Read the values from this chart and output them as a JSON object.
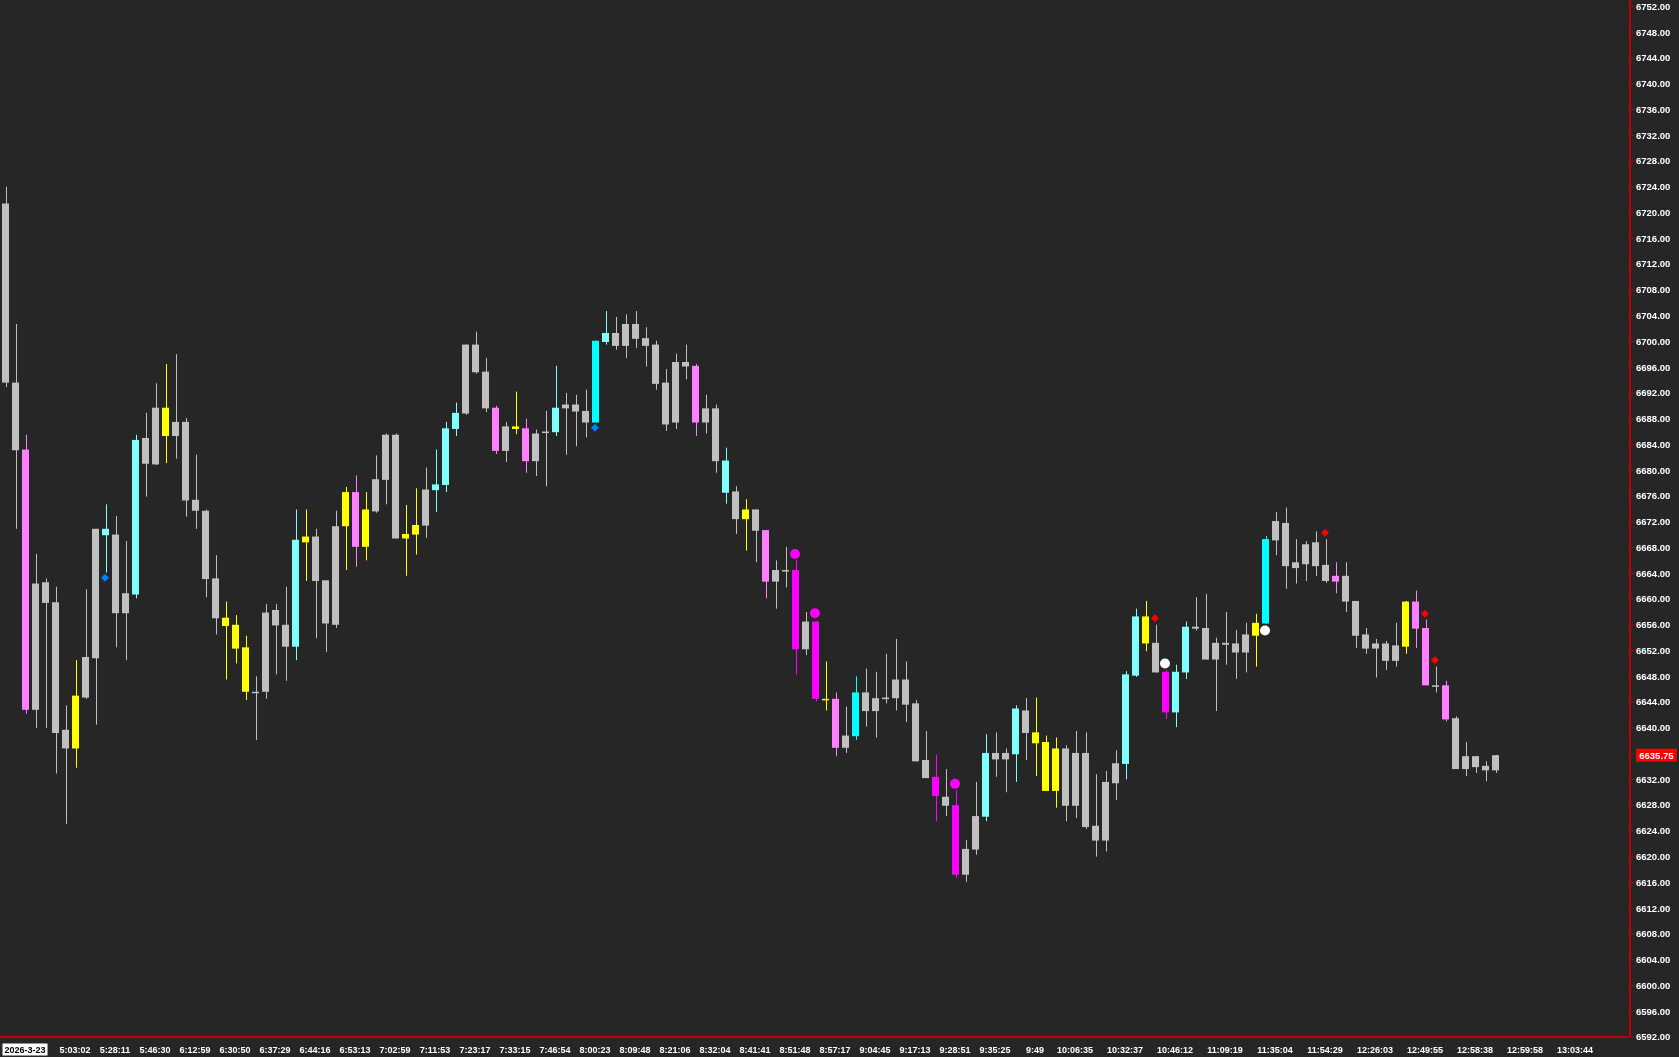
{
  "chart_data": {
    "type": "candlestick",
    "categories": [
      null,
      null,
      "2026-3-23",
      null,
      null,
      null,
      null,
      "5:03:02",
      null,
      null,
      null,
      "5:28:11",
      null,
      null,
      null,
      "5:46:30",
      null,
      null,
      null,
      "6:12:59",
      null,
      null,
      null,
      "6:30:50",
      null,
      null,
      null,
      "6:37:29",
      null,
      null,
      null,
      "6:44:16",
      null,
      null,
      null,
      "6:53:13",
      null,
      null,
      null,
      "7:02:59",
      null,
      null,
      null,
      "7:11:53",
      null,
      null,
      null,
      "7:23:17",
      null,
      null,
      null,
      "7:33:15",
      null,
      null,
      null,
      "7:46:54",
      null,
      null,
      null,
      "8:00:23",
      null,
      null,
      null,
      "8:09:48",
      null,
      null,
      null,
      "8:21:06",
      null,
      null,
      null,
      "8:32:04",
      null,
      null,
      null,
      "8:41:41",
      null,
      null,
      null,
      "8:51:48",
      null,
      null,
      null,
      "8:57:17",
      null,
      null,
      null,
      "9:04:45",
      null,
      null,
      null,
      "9:17:13",
      null,
      null,
      null,
      "9:28:51",
      null,
      null,
      null,
      "9:35:25",
      null,
      null,
      null,
      "9:49",
      null,
      null,
      null,
      "10:06:35",
      null,
      null,
      null,
      null,
      "10:32:37",
      null,
      null,
      null,
      null,
      "10:46:12",
      null,
      null,
      null,
      null,
      "11:09:19",
      null,
      null,
      null,
      null,
      "11:35:04",
      null,
      null,
      null,
      null,
      "11:54:29",
      null,
      null,
      null,
      null,
      "12:26:03",
      null,
      null,
      null,
      null,
      "12:49:55",
      null,
      null,
      null,
      null,
      "12:58:38",
      null,
      null,
      null,
      null,
      "12:59:58",
      null,
      null,
      null,
      null,
      "13:03:44",
      null,
      null,
      null,
      null,
      null
    ],
    "ohlc": [
      [
        6693.6,
        6724.0,
        6692.9,
        6721.4
      ],
      [
        6683.1,
        6702.7,
        6670.9,
        6693.6
      ],
      [
        6683.2,
        6685.5,
        6642.2,
        6642.8
      ],
      [
        6642.8,
        6667.0,
        6640.0,
        6662.4
      ],
      [
        6659.4,
        6663.2,
        6640.0,
        6662.6
      ],
      [
        6639.2,
        6661.9,
        6632.9,
        6659.5
      ],
      [
        6636.8,
        6643.5,
        6625.1,
        6639.7
      ],
      [
        6636.8,
        6650.5,
        6633.8,
        6645.0
      ],
      [
        6644.7,
        6661.5,
        6644.5,
        6651.0
      ],
      [
        6650.8,
        6670.9,
        6640.5,
        6670.9
      ],
      [
        6669.9,
        6674.7,
        6664.1,
        6670.9
      ],
      [
        6657.8,
        6672.9,
        6652.5,
        6670.0
      ],
      [
        6657.8,
        6669.0,
        6650.5,
        6660.9
      ],
      [
        6660.7,
        6685.5,
        6660.1,
        6684.7
      ],
      [
        6681.0,
        6688.9,
        6675.9,
        6685.0
      ],
      [
        6680.9,
        6693.5,
        6680.8,
        6689.7
      ],
      [
        6685.3,
        6696.5,
        6681.1,
        6689.7
      ],
      [
        6685.3,
        6698.0,
        6681.8,
        6687.5
      ],
      [
        6675.3,
        6688.1,
        6672.8,
        6687.5
      ],
      [
        6673.7,
        6682.4,
        6670.9,
        6675.4
      ],
      [
        6663.1,
        6673.9,
        6660.3,
        6673.7
      ],
      [
        6657.0,
        6666.8,
        6654.5,
        6663.2
      ],
      [
        6655.8,
        6659.6,
        6647.5,
        6657.1
      ],
      [
        6652.3,
        6657.5,
        6650.0,
        6656.0
      ],
      [
        6645.6,
        6654.3,
        6644.3,
        6652.5
      ],
      [
        6645.4,
        6648.0,
        6638.1,
        6645.6
      ],
      [
        6645.6,
        6659.2,
        6644.5,
        6657.9
      ],
      [
        6655.9,
        6659.2,
        6648.3,
        6658.3
      ],
      [
        6652.6,
        6661.9,
        6647.3,
        6656.0
      ],
      [
        6652.6,
        6673.9,
        6650.5,
        6669.2
      ],
      [
        6668.8,
        6673.9,
        6662.8,
        6669.7
      ],
      [
        6662.8,
        6670.9,
        6653.9,
        6669.7
      ],
      [
        6656.2,
        6662.9,
        6651.8,
        6662.9
      ],
      [
        6656.0,
        6673.7,
        6655.5,
        6671.3
      ],
      [
        6671.3,
        6677.4,
        6664.5,
        6676.6
      ],
      [
        6676.6,
        6679.2,
        6665.0,
        6668.1
      ],
      [
        6668.1,
        6676.6,
        6666.0,
        6673.9
      ],
      [
        6673.6,
        6682.3,
        6673.4,
        6678.6
      ],
      [
        6678.5,
        6685.7,
        6674.7,
        6685.5
      ],
      [
        6669.4,
        6685.7,
        6669.4,
        6685.5
      ],
      [
        6669.4,
        6674.6,
        6663.6,
        6670.1
      ],
      [
        6670.0,
        6677.2,
        6666.9,
        6671.5
      ],
      [
        6671.4,
        6680.4,
        6669.5,
        6677.0
      ],
      [
        6676.9,
        6683.2,
        6673.5,
        6677.8
      ],
      [
        6677.7,
        6687.5,
        6676.6,
        6686.5
      ],
      [
        6686.4,
        6690.5,
        6685.3,
        6688.9
      ],
      [
        6688.8,
        6699.5,
        6688.6,
        6699.5
      ],
      [
        6695.2,
        6701.5,
        6695.0,
        6699.5
      ],
      [
        6689.6,
        6697.4,
        6689.0,
        6695.3
      ],
      [
        6689.7,
        6690.0,
        6682.5,
        6683.0
      ],
      [
        6683.0,
        6687.5,
        6681.3,
        6686.8
      ],
      [
        6686.4,
        6692.2,
        6685.6,
        6686.8
      ],
      [
        6686.5,
        6688.0,
        6679.6,
        6681.4
      ],
      [
        6681.4,
        6686.3,
        6679.1,
        6685.7
      ],
      [
        6685.9,
        6689.2,
        6677.5,
        6686.0
      ],
      [
        6685.9,
        6696.2,
        6685.3,
        6689.7
      ],
      [
        6689.6,
        6692.0,
        6682.4,
        6690.2
      ],
      [
        6689.1,
        6691.7,
        6683.7,
        6690.2
      ],
      [
        6687.4,
        6692.5,
        6685.1,
        6689.2
      ],
      [
        6687.4,
        6700.1,
        6687.4,
        6700.1
      ],
      [
        6699.9,
        6704.7,
        6699.5,
        6701.3
      ],
      [
        6699.3,
        6703.8,
        6698.7,
        6701.3
      ],
      [
        6699.3,
        6704.2,
        6697.4,
        6702.7
      ],
      [
        6700.4,
        6704.7,
        6699.0,
        6702.7
      ],
      [
        6699.3,
        6702.2,
        6696.1,
        6700.5
      ],
      [
        6693.4,
        6700.1,
        6692.5,
        6699.5
      ],
      [
        6687.1,
        6695.7,
        6686.1,
        6693.6
      ],
      [
        6687.4,
        6698.1,
        6686.4,
        6696.8
      ],
      [
        6696.1,
        6699.5,
        6694.1,
        6696.8
      ],
      [
        6696.2,
        6696.5,
        6685.3,
        6687.4
      ],
      [
        6687.4,
        6691.7,
        6685.7,
        6689.6
      ],
      [
        6681.4,
        6690.2,
        6679.6,
        6689.6
      ],
      [
        6676.5,
        6683.5,
        6674.8,
        6681.5
      ],
      [
        6672.4,
        6677.5,
        6670.1,
        6676.7
      ],
      [
        6672.4,
        6675.5,
        6667.5,
        6673.9
      ],
      [
        6670.6,
        6673.9,
        6665.7,
        6673.9
      ],
      [
        6670.7,
        6670.7,
        6660.1,
        6662.7
      ],
      [
        6662.7,
        6666.0,
        6658.5,
        6664.5
      ],
      [
        6664.4,
        6668.1,
        6661.8,
        6664.5
      ],
      [
        6664.5,
        6666.1,
        6648.3,
        6652.2
      ],
      [
        6652.2,
        6658.0,
        6651.3,
        6656.5
      ],
      [
        6656.5,
        6656.5,
        6644.1,
        6644.5
      ],
      [
        6644.4,
        6650.3,
        6642.7,
        6644.5
      ],
      [
        6644.5,
        6645.5,
        6635.6,
        6636.9
      ],
      [
        6636.9,
        6643.3,
        6636.1,
        6638.8
      ],
      [
        6638.7,
        6648.0,
        6638.1,
        6645.5
      ],
      [
        6642.6,
        6649.2,
        6640.2,
        6645.5
      ],
      [
        6642.6,
        6648.7,
        6638.5,
        6644.6
      ],
      [
        6644.5,
        6651.5,
        6643.8,
        6644.7
      ],
      [
        6644.6,
        6653.8,
        6642.7,
        6647.5
      ],
      [
        6643.6,
        6650.3,
        6640.9,
        6647.5
      ],
      [
        6634.8,
        6644.3,
        6634.8,
        6643.8
      ],
      [
        6632.2,
        6639.5,
        6632.2,
        6635.0
      ],
      [
        6632.4,
        6635.8,
        6625.5,
        6629.4
      ],
      [
        6627.9,
        6633.6,
        6626.3,
        6629.3
      ],
      [
        6628.0,
        6630.3,
        6616.7,
        6617.2
      ],
      [
        6617.2,
        6622.6,
        6616.1,
        6621.2
      ],
      [
        6621.1,
        6631.6,
        6620.3,
        6626.3
      ],
      [
        6626.2,
        6639.0,
        6625.5,
        6636.1
      ],
      [
        6635.1,
        6639.3,
        6632.4,
        6636.1
      ],
      [
        6635.1,
        6636.8,
        6630.0,
        6636.1
      ],
      [
        6635.9,
        6643.5,
        6631.6,
        6643.0
      ],
      [
        6639.2,
        6644.6,
        6635.0,
        6642.7
      ],
      [
        6637.6,
        6644.7,
        6632.5,
        6639.3
      ],
      [
        6630.2,
        6638.8,
        6630.2,
        6637.8
      ],
      [
        6630.2,
        6638.5,
        6627.6,
        6636.8
      ],
      [
        6627.9,
        6637.3,
        6625.5,
        6636.8
      ],
      [
        6627.9,
        6639.5,
        6626.0,
        6636.1
      ],
      [
        6624.6,
        6639.3,
        6624.3,
        6636.1
      ],
      [
        6622.5,
        6632.8,
        6620.0,
        6624.8
      ],
      [
        6622.5,
        6633.3,
        6620.8,
        6631.6
      ],
      [
        6631.4,
        6636.5,
        6628.8,
        6634.5
      ],
      [
        6634.4,
        6648.8,
        6632.0,
        6648.3
      ],
      [
        6648.1,
        6658.5,
        6647.9,
        6657.3
      ],
      [
        6653.1,
        6659.7,
        6651.9,
        6657.3
      ],
      [
        6648.6,
        6656.0,
        6648.6,
        6653.2
      ],
      [
        6648.7,
        6649.0,
        6641.4,
        6642.4
      ],
      [
        6642.4,
        6649.8,
        6640.1,
        6648.7
      ],
      [
        6648.6,
        6656.5,
        6647.6,
        6655.7
      ],
      [
        6655.4,
        6660.3,
        6655.1,
        6655.7
      ],
      [
        6650.6,
        6660.8,
        6650.6,
        6655.5
      ],
      [
        6650.6,
        6654.0,
        6642.6,
        6653.2
      ],
      [
        6652.9,
        6658.0,
        6649.8,
        6653.2
      ],
      [
        6651.7,
        6655.2,
        6647.6,
        6653.1
      ],
      [
        6651.7,
        6656.3,
        6648.6,
        6654.5
      ],
      [
        6654.3,
        6657.7,
        6649.5,
        6656.3
      ],
      [
        6656.2,
        6669.8,
        6656.1,
        6669.3
      ],
      [
        6669.1,
        6673.5,
        6666.8,
        6672.1
      ],
      [
        6665.1,
        6674.2,
        6661.6,
        6671.8
      ],
      [
        6664.8,
        6669.3,
        6662.4,
        6665.7
      ],
      [
        6665.4,
        6669.0,
        6662.8,
        6668.5
      ],
      [
        6665.1,
        6670.5,
        6663.6,
        6668.8
      ],
      [
        6662.8,
        6669.3,
        6662.5,
        6665.3
      ],
      [
        6663.6,
        6665.7,
        6660.9,
        6662.7
      ],
      [
        6659.6,
        6665.7,
        6658.0,
        6663.6
      ],
      [
        6654.3,
        6659.7,
        6652.4,
        6659.7
      ],
      [
        6652.3,
        6655.5,
        6651.5,
        6654.5
      ],
      [
        6652.3,
        6653.8,
        6647.8,
        6653.1
      ],
      [
        6650.4,
        6653.5,
        6649.0,
        6653.1
      ],
      [
        6650.4,
        6656.3,
        6649.5,
        6652.8
      ],
      [
        6652.6,
        6659.7,
        6651.5,
        6659.6
      ],
      [
        6659.6,
        6661.3,
        6652.4,
        6655.4
      ],
      [
        6655.5,
        6656.8,
        6646.6,
        6646.6
      ],
      [
        6646.5,
        6649.5,
        6645.5,
        6646.6
      ],
      [
        6646.6,
        6647.3,
        6641.0,
        6641.3
      ],
      [
        6633.6,
        6641.8,
        6633.6,
        6641.5
      ],
      [
        6633.6,
        6637.8,
        6632.5,
        6635.6
      ],
      [
        6633.9,
        6635.6,
        6633.0,
        6635.6
      ],
      [
        6633.4,
        6634.8,
        6631.7,
        6634.1
      ],
      [
        6633.4,
        6635.8,
        6633.0,
        6635.75
      ],
      null,
      null,
      null,
      null,
      null,
      null,
      null,
      null,
      null,
      null,
      null,
      null,
      null
    ],
    "colors": [
      "#c0c0c0",
      "#c0c0c0",
      "#ff80ff",
      "#c0c0c0",
      "#c0c0c0",
      "#c0c0c0",
      "#c0c0c0",
      "#ffff00",
      "#c0c0c0",
      "#c0c0c0",
      "#80ffff",
      "#c0c0c0",
      "#c0c0c0",
      "#80ffff",
      "#c0c0c0",
      "#c0c0c0",
      "#ffff00",
      "#c0c0c0",
      "#c0c0c0",
      "#c0c0c0",
      "#c0c0c0",
      "#c0c0c0",
      "#ffff00",
      "#ffff00",
      "#ffff00",
      "#c0c0c0",
      "#c0c0c0",
      "#c0c0c0",
      "#c0c0c0",
      "#80ffff",
      "#ffff00",
      "#c0c0c0",
      "#c0c0c0",
      "#c0c0c0",
      "#ffff00",
      "#ff80ff",
      "#ffff00",
      "#c0c0c0",
      "#c0c0c0",
      "#c0c0c0",
      "#ffff00",
      "#ffff00",
      "#c0c0c0",
      "#80ffff",
      "#80ffff",
      "#80ffff",
      "#c0c0c0",
      "#c0c0c0",
      "#c0c0c0",
      "#ff80ff",
      "#c0c0c0",
      "#ffff00",
      "#ff80ff",
      "#c0c0c0",
      "#c0c0c0",
      "#80ffff",
      "#c0c0c0",
      "#c0c0c0",
      "#c0c0c0",
      "#00ffff",
      "#80ffff",
      "#c0c0c0",
      "#c0c0c0",
      "#c0c0c0",
      "#c0c0c0",
      "#c0c0c0",
      "#c0c0c0",
      "#c0c0c0",
      "#c0c0c0",
      "#ff80ff",
      "#c0c0c0",
      "#c0c0c0",
      "#80ffff",
      "#c0c0c0",
      "#ffff00",
      "#c0c0c0",
      "#ff80ff",
      "#c0c0c0",
      "#c0c0c0",
      "#ff00ff",
      "#c0c0c0",
      "#ff00ff",
      "#ffff00",
      "#ff80ff",
      "#c0c0c0",
      "#00ffff",
      "#c0c0c0",
      "#c0c0c0",
      "#c0c0c0",
      "#c0c0c0",
      "#c0c0c0",
      "#c0c0c0",
      "#c0c0c0",
      "#ff00ff",
      "#c0c0c0",
      "#ff00ff",
      "#c0c0c0",
      "#c0c0c0",
      "#80ffff",
      "#c0c0c0",
      "#c0c0c0",
      "#80ffff",
      "#c0c0c0",
      "#ffff00",
      "#ffff00",
      "#ffff00",
      "#c0c0c0",
      "#c0c0c0",
      "#c0c0c0",
      "#c0c0c0",
      "#c0c0c0",
      "#c0c0c0",
      "#80ffff",
      "#80ffff",
      "#ffff00",
      "#c0c0c0",
      "#ff00ff",
      "#80ffff",
      "#80ffff",
      "#c0c0c0",
      "#c0c0c0",
      "#c0c0c0",
      "#c0c0c0",
      "#c0c0c0",
      "#c0c0c0",
      "#ffff00",
      "#00ffff",
      "#c0c0c0",
      "#c0c0c0",
      "#c0c0c0",
      "#c0c0c0",
      "#c0c0c0",
      "#c0c0c0",
      "#ff80ff",
      "#c0c0c0",
      "#c0c0c0",
      "#c0c0c0",
      "#c0c0c0",
      "#c0c0c0",
      "#c0c0c0",
      "#ffff00",
      "#ff80ff",
      "#ff80ff",
      "#c0c0c0",
      "#ff80ff",
      "#c0c0c0",
      "#c0c0c0",
      "#c0c0c0",
      "#c0c0c0",
      "#c0c0c0",
      null,
      null,
      null,
      null,
      null,
      null,
      null,
      null,
      null,
      null,
      null,
      null,
      null
    ],
    "series": [
      {
        "type": "scatter",
        "color": "#0080ff",
        "marker": "diamond",
        "values": [
          null,
          null,
          null,
          null,
          null,
          null,
          null,
          null,
          null,
          null,
          6663.3,
          null,
          null,
          null,
          null,
          null,
          null,
          null,
          null,
          null,
          null,
          null,
          null,
          null,
          null,
          null,
          null,
          null,
          null,
          null,
          null,
          null,
          null,
          null,
          null,
          null,
          null,
          null,
          null,
          null,
          null,
          null,
          null,
          null,
          null,
          null,
          null,
          null,
          null,
          null,
          null,
          null,
          null,
          null,
          null,
          null,
          null,
          null,
          null,
          6686.6,
          null,
          null,
          null,
          null,
          null,
          null,
          null,
          null,
          null,
          null,
          null,
          null,
          null,
          null,
          null,
          null,
          null,
          null,
          null,
          null,
          null,
          null,
          null,
          null,
          null,
          null,
          null,
          null,
          null,
          null,
          null,
          null,
          null,
          null,
          null,
          null,
          null,
          null,
          null,
          null,
          null,
          null,
          null,
          null,
          null,
          null,
          null,
          null,
          null,
          null,
          null,
          null,
          null,
          null,
          null,
          null,
          null,
          null,
          null,
          null,
          null,
          null,
          null,
          null,
          null,
          null,
          null,
          null,
          null,
          null,
          null,
          null,
          null,
          null,
          null,
          null,
          null,
          null,
          null,
          null,
          null,
          null,
          null,
          null,
          null,
          null,
          null,
          null,
          null,
          null,
          null,
          null,
          null,
          null,
          null,
          null,
          null,
          null,
          null,
          null,
          null,
          null,
          null
        ]
      },
      {
        "type": "scatter",
        "color": "#ff00ff",
        "marker": "circle",
        "values": [
          null,
          null,
          null,
          null,
          null,
          null,
          null,
          null,
          null,
          null,
          null,
          null,
          null,
          null,
          null,
          null,
          null,
          null,
          null,
          null,
          null,
          null,
          null,
          null,
          null,
          null,
          null,
          null,
          null,
          null,
          null,
          null,
          null,
          null,
          null,
          null,
          null,
          null,
          null,
          null,
          null,
          null,
          null,
          null,
          null,
          null,
          null,
          null,
          null,
          null,
          null,
          null,
          null,
          null,
          null,
          null,
          null,
          null,
          null,
          null,
          null,
          null,
          null,
          null,
          null,
          null,
          null,
          null,
          null,
          null,
          null,
          null,
          null,
          null,
          null,
          null,
          null,
          null,
          null,
          6667.0,
          null,
          6657.8,
          null,
          null,
          null,
          null,
          null,
          null,
          null,
          null,
          null,
          null,
          null,
          null,
          null,
          6631.3,
          null,
          null,
          null,
          null,
          null,
          null,
          null,
          null,
          null,
          null,
          null,
          null,
          null,
          null,
          null,
          null,
          null,
          null,
          null,
          null,
          null,
          null,
          null,
          null,
          null,
          null,
          null,
          null,
          null,
          null,
          null,
          null,
          null,
          null,
          null,
          null,
          null,
          null,
          null,
          null,
          null,
          null,
          null,
          null,
          null,
          null,
          null,
          null,
          null,
          null,
          null,
          null,
          null,
          null,
          null,
          null,
          null,
          null,
          null,
          null,
          null,
          null,
          null,
          null,
          null,
          null,
          null
        ]
      },
      {
        "type": "scatter",
        "color": "#ffffff",
        "marker": "circle",
        "values": [
          null,
          null,
          null,
          null,
          null,
          null,
          null,
          null,
          null,
          null,
          null,
          null,
          null,
          null,
          null,
          null,
          null,
          null,
          null,
          null,
          null,
          null,
          null,
          null,
          null,
          null,
          null,
          null,
          null,
          null,
          null,
          null,
          null,
          null,
          null,
          null,
          null,
          null,
          null,
          null,
          null,
          null,
          null,
          null,
          null,
          null,
          null,
          null,
          null,
          null,
          null,
          null,
          null,
          null,
          null,
          null,
          null,
          null,
          null,
          null,
          null,
          null,
          null,
          null,
          null,
          null,
          null,
          null,
          null,
          null,
          null,
          null,
          null,
          null,
          null,
          null,
          null,
          null,
          null,
          null,
          null,
          null,
          null,
          null,
          null,
          null,
          null,
          null,
          null,
          null,
          null,
          null,
          null,
          null,
          null,
          null,
          null,
          null,
          null,
          null,
          null,
          null,
          null,
          null,
          null,
          null,
          null,
          null,
          null,
          null,
          null,
          null,
          null,
          null,
          null,
          null,
          6650.0,
          null,
          null,
          null,
          null,
          null,
          null,
          null,
          null,
          null,
          6655.1,
          null,
          null,
          null,
          null,
          null,
          null,
          null,
          null,
          null,
          null,
          null,
          null,
          null,
          null,
          null,
          null,
          null,
          null,
          null,
          null,
          null,
          null,
          null,
          null,
          null,
          null,
          null,
          null,
          null,
          null,
          null,
          null,
          null,
          null,
          null,
          null
        ]
      },
      {
        "type": "scatter",
        "color": "#ff0000",
        "marker": "diamond",
        "values": [
          null,
          null,
          null,
          null,
          null,
          null,
          null,
          null,
          null,
          null,
          null,
          null,
          null,
          null,
          null,
          null,
          null,
          null,
          null,
          null,
          null,
          null,
          null,
          null,
          null,
          null,
          null,
          null,
          null,
          null,
          null,
          null,
          null,
          null,
          null,
          null,
          null,
          null,
          null,
          null,
          null,
          null,
          null,
          null,
          null,
          null,
          null,
          null,
          null,
          null,
          null,
          null,
          null,
          null,
          null,
          null,
          null,
          null,
          null,
          null,
          null,
          null,
          null,
          null,
          null,
          null,
          null,
          null,
          null,
          null,
          null,
          null,
          null,
          null,
          null,
          null,
          null,
          null,
          null,
          null,
          null,
          null,
          null,
          null,
          null,
          null,
          null,
          null,
          null,
          null,
          null,
          null,
          null,
          null,
          null,
          null,
          null,
          null,
          null,
          null,
          null,
          null,
          null,
          null,
          null,
          null,
          null,
          null,
          null,
          null,
          null,
          null,
          null,
          null,
          null,
          6657.0,
          null,
          null,
          null,
          null,
          null,
          null,
          null,
          null,
          null,
          null,
          null,
          null,
          null,
          null,
          null,
          null,
          6670.3,
          null,
          null,
          null,
          null,
          null,
          null,
          null,
          null,
          null,
          6657.7,
          6650.5,
          null,
          null,
          null,
          null,
          null,
          null,
          null,
          null,
          null,
          null,
          null,
          null,
          null,
          null,
          null,
          null,
          null,
          null,
          null
        ]
      }
    ],
    "ylim": [
      6592,
      6753
    ],
    "yticks": [
      {
        "value": 6592,
        "label": "6592.00"
      },
      {
        "value": 6596,
        "label": "6596.00"
      },
      {
        "value": 6600,
        "label": "6600.00"
      },
      {
        "value": 6604,
        "label": "6604.00"
      },
      {
        "value": 6608,
        "label": "6608.00"
      },
      {
        "value": 6612,
        "label": "6612.00"
      },
      {
        "value": 6616,
        "label": "6616.00"
      },
      {
        "value": 6620,
        "label": "6620.00"
      },
      {
        "value": 6624,
        "label": "6624.00"
      },
      {
        "value": 6628,
        "label": "6628.00"
      },
      {
        "value": 6632,
        "label": "6632.00"
      },
      {
        "value": 6636,
        "label": null
      },
      {
        "value": 6640,
        "label": "6640.00"
      },
      {
        "value": 6644,
        "label": "6644.00"
      },
      {
        "value": 6648,
        "label": "6648.00"
      },
      {
        "value": 6652,
        "label": "6652.00"
      },
      {
        "value": 6656,
        "label": "6656.00"
      },
      {
        "value": 6660,
        "label": "6660.00"
      },
      {
        "value": 6664,
        "label": "6664.00"
      },
      {
        "value": 6668,
        "label": "6668.00"
      },
      {
        "value": 6672,
        "label": "6672.00"
      },
      {
        "value": 6676,
        "label": "6676.00"
      },
      {
        "value": 6680,
        "label": "6680.00"
      },
      {
        "value": 6684,
        "label": "6684.00"
      },
      {
        "value": 6688,
        "label": "6688.00"
      },
      {
        "value": 6692,
        "label": "6692.00"
      },
      {
        "value": 6696,
        "label": "6696.00"
      },
      {
        "value": 6700,
        "label": "6700.00"
      },
      {
        "value": 6704,
        "label": "6704.00"
      },
      {
        "value": 6708,
        "label": "6708.00"
      },
      {
        "value": 6712,
        "label": "6712.00"
      },
      {
        "value": 6716,
        "label": "6716.00"
      },
      {
        "value": 6720,
        "label": "6720.00"
      },
      {
        "value": 6724,
        "label": "6724.00"
      },
      {
        "value": 6728,
        "label": "6728.00"
      },
      {
        "value": 6732,
        "label": "6732.00"
      },
      {
        "value": 6736,
        "label": "6736.00"
      },
      {
        "value": 6740,
        "label": "6740.00"
      },
      {
        "value": 6744,
        "label": "6744.00"
      },
      {
        "value": 6748,
        "label": "6748.00"
      },
      {
        "value": 6752,
        "label": "6752.00"
      }
    ],
    "annotations": [
      "6635.75"
    ]
  }
}
